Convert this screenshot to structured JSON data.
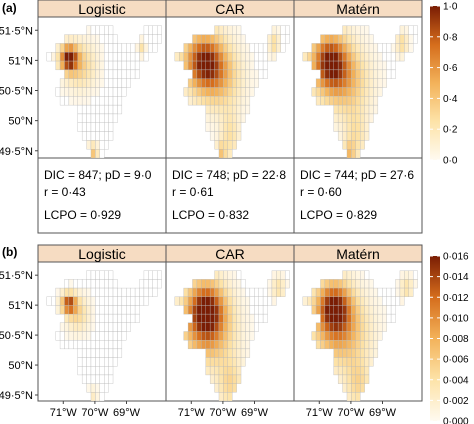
{
  "chart_data": [
    {
      "type": "heatmap",
      "panel_label": "(a)",
      "facets": [
        "Logistic",
        "CAR",
        "Matérn"
      ],
      "y_tick_labels": [
        "51·5°N",
        "51°N",
        "50·5°N",
        "50°N",
        "49·5°N"
      ],
      "y_ticks": [
        51.5,
        51.0,
        50.5,
        50.0,
        49.5
      ],
      "colorbar": {
        "ticks": [
          "1·0",
          "0·8",
          "0·6",
          "0·4",
          "0·2",
          "0·0"
        ],
        "range": [
          0,
          1
        ]
      },
      "stats": [
        {
          "line1": "DIC = 847; pD = 9·0",
          "line2": "r = 0·43",
          "line3": "LCPO = 0·929"
        },
        {
          "line1": "DIC = 748; pD = 22·8",
          "line2": "r = 0·61",
          "line3": "LCPO = 0·832"
        },
        {
          "line1": "DIC = 744; pD = 27·6",
          "line2": "r = 0·60",
          "line3": "LCPO = 0·829"
        }
      ]
    },
    {
      "type": "heatmap",
      "panel_label": "(b)",
      "facets": [
        "Logistic",
        "CAR",
        "Matérn"
      ],
      "y_tick_labels": [
        "51·5°N",
        "51°N",
        "50·5°N",
        "50°N",
        "49·5°N"
      ],
      "y_ticks": [
        51.5,
        51.0,
        50.5,
        50.0,
        49.5
      ],
      "x_tick_labels": [
        "71°W",
        "70°W",
        "69°W"
      ],
      "x_ticks": [
        -71,
        -70,
        -69
      ],
      "colorbar": {
        "ticks": [
          "0·016",
          "0·014",
          "0·012",
          "0·010",
          "0·008",
          "0·006",
          "0·004",
          "0·002",
          "0·000"
        ],
        "range": [
          0,
          0.016
        ]
      }
    }
  ],
  "colors": {
    "strip_fill": "#f6dcc2",
    "low": "#fff8ec",
    "high": "#7a1d04",
    "cell_border": "#b8b8b8"
  }
}
